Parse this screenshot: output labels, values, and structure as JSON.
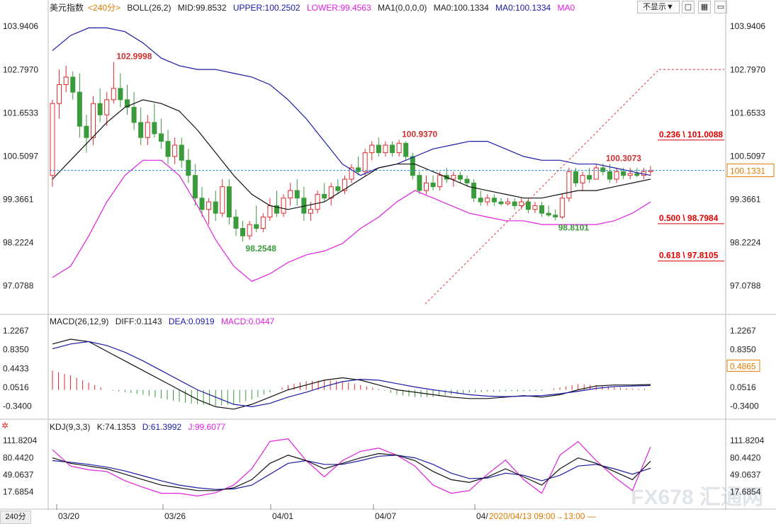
{
  "header": {
    "symbol": "美元指数",
    "period": "<240分>",
    "boll": "BOLL(26,2)",
    "boll_mid": "MID:99.8532",
    "boll_upper": "UPPER:100.2502",
    "boll_lower": "LOWER:99.4563",
    "ma": "MA1(0,0,0,0)",
    "ma0": "MA0:100.1334",
    "ma0b": "MA0:100.1334",
    "ma0c": "MA0",
    "hide_btn": "不显示▼",
    "icons": [
      "box-icon",
      "grid-icon",
      "window-icon"
    ]
  },
  "macd_header": {
    "name": "MACD(26,12,9)",
    "diff": "DIFF:0.1143",
    "dea": "DEA:0.0919",
    "macd": "MACD:0.0447"
  },
  "kdj_header": {
    "name": "KDJ(9,3,3)",
    "k": "K:74.1353",
    "d": "D:61.3992",
    "j": "J:99.6077"
  },
  "footer": {
    "period_label": "240分",
    "time_label": "2020/04/13 09:00→13:00 —"
  },
  "colors": {
    "up": "#e0292b",
    "down": "#3a9b3a",
    "upper_band": "#1a1aa6",
    "lower_band": "#e020e0",
    "mid_band": "#111111",
    "dea_line": "#1a1aa6",
    "fib_text": "#e00000",
    "current_price_line": "#2a8fd0",
    "current_price_box": "#e07a00",
    "macd_value_box": "#e07a00"
  },
  "chart_data": {
    "type": "candlestick",
    "main_yaxis_ticks": [
      "103.9406",
      "102.7970",
      "101.6533",
      "100.5097",
      "99.3661",
      "98.2224",
      "97.0788"
    ],
    "main_ylim": [
      96.4,
      104.3
    ],
    "xaxis_labels": [
      "03/20",
      "03/26",
      "04/01",
      "04/07",
      "04/"
    ],
    "candles": [
      {
        "o": 100.0,
        "h": 102.0,
        "l": 99.7,
        "c": 101.9
      },
      {
        "o": 101.9,
        "h": 102.8,
        "l": 101.5,
        "c": 102.4
      },
      {
        "o": 102.4,
        "h": 102.9,
        "l": 102.2,
        "c": 102.6
      },
      {
        "o": 102.6,
        "h": 102.75,
        "l": 102.0,
        "c": 102.2
      },
      {
        "o": 102.2,
        "h": 102.7,
        "l": 101.0,
        "c": 101.3
      },
      {
        "o": 101.3,
        "h": 101.6,
        "l": 100.6,
        "c": 101.0
      },
      {
        "o": 101.0,
        "h": 102.1,
        "l": 100.8,
        "c": 101.9
      },
      {
        "o": 101.9,
        "h": 102.3,
        "l": 101.4,
        "c": 101.6
      },
      {
        "o": 101.6,
        "h": 102.2,
        "l": 101.3,
        "c": 102.0
      },
      {
        "o": 102.0,
        "h": 103.0,
        "l": 101.9,
        "c": 102.3
      },
      {
        "o": 102.3,
        "h": 102.7,
        "l": 101.8,
        "c": 102.0
      },
      {
        "o": 102.0,
        "h": 102.4,
        "l": 101.6,
        "c": 101.8
      },
      {
        "o": 101.8,
        "h": 102.2,
        "l": 101.2,
        "c": 101.4
      },
      {
        "o": 101.4,
        "h": 101.8,
        "l": 100.8,
        "c": 101.0
      },
      {
        "o": 101.0,
        "h": 101.6,
        "l": 100.8,
        "c": 101.4
      },
      {
        "o": 101.4,
        "h": 101.9,
        "l": 101.0,
        "c": 101.1
      },
      {
        "o": 101.1,
        "h": 101.5,
        "l": 100.7,
        "c": 100.9
      },
      {
        "o": 100.9,
        "h": 101.2,
        "l": 100.3,
        "c": 100.5
      },
      {
        "o": 100.5,
        "h": 101.0,
        "l": 100.3,
        "c": 100.8
      },
      {
        "o": 100.8,
        "h": 101.0,
        "l": 100.2,
        "c": 100.4
      },
      {
        "o": 100.4,
        "h": 100.7,
        "l": 99.8,
        "c": 100.0
      },
      {
        "o": 100.0,
        "h": 100.3,
        "l": 99.2,
        "c": 99.4
      },
      {
        "o": 99.4,
        "h": 99.7,
        "l": 98.9,
        "c": 99.1
      },
      {
        "o": 99.1,
        "h": 99.4,
        "l": 98.7,
        "c": 99.3
      },
      {
        "o": 99.3,
        "h": 99.6,
        "l": 98.8,
        "c": 99.0
      },
      {
        "o": 99.0,
        "h": 99.9,
        "l": 98.9,
        "c": 99.7
      },
      {
        "o": 99.7,
        "h": 99.9,
        "l": 98.7,
        "c": 98.9
      },
      {
        "o": 98.9,
        "h": 99.1,
        "l": 98.4,
        "c": 98.6
      },
      {
        "o": 98.6,
        "h": 98.8,
        "l": 98.25,
        "c": 98.4
      },
      {
        "o": 98.4,
        "h": 98.8,
        "l": 98.3,
        "c": 98.7
      },
      {
        "o": 98.7,
        "h": 99.2,
        "l": 98.5,
        "c": 98.6
      },
      {
        "o": 98.6,
        "h": 99.0,
        "l": 98.5,
        "c": 98.9
      },
      {
        "o": 98.9,
        "h": 99.4,
        "l": 98.8,
        "c": 99.2
      },
      {
        "o": 99.2,
        "h": 99.6,
        "l": 98.9,
        "c": 99.0
      },
      {
        "o": 99.0,
        "h": 99.5,
        "l": 98.9,
        "c": 99.4
      },
      {
        "o": 99.4,
        "h": 99.8,
        "l": 99.2,
        "c": 99.6
      },
      {
        "o": 99.6,
        "h": 99.9,
        "l": 99.2,
        "c": 99.4
      },
      {
        "o": 99.4,
        "h": 99.7,
        "l": 98.8,
        "c": 99.0
      },
      {
        "o": 99.0,
        "h": 99.3,
        "l": 98.8,
        "c": 99.1
      },
      {
        "o": 99.1,
        "h": 99.6,
        "l": 99.0,
        "c": 99.5
      },
      {
        "o": 99.5,
        "h": 99.8,
        "l": 99.3,
        "c": 99.4
      },
      {
        "o": 99.4,
        "h": 99.8,
        "l": 99.2,
        "c": 99.7
      },
      {
        "o": 99.7,
        "h": 99.9,
        "l": 99.5,
        "c": 99.6
      },
      {
        "o": 99.6,
        "h": 100.0,
        "l": 99.5,
        "c": 99.9
      },
      {
        "o": 99.9,
        "h": 100.3,
        "l": 99.8,
        "c": 100.2
      },
      {
        "o": 100.2,
        "h": 100.5,
        "l": 100.0,
        "c": 100.1
      },
      {
        "o": 100.1,
        "h": 100.7,
        "l": 100.0,
        "c": 100.6
      },
      {
        "o": 100.6,
        "h": 100.9,
        "l": 100.4,
        "c": 100.8
      },
      {
        "o": 100.8,
        "h": 101.0,
        "l": 100.5,
        "c": 100.6
      },
      {
        "o": 100.6,
        "h": 100.9,
        "l": 100.5,
        "c": 100.8
      },
      {
        "o": 100.8,
        "h": 100.9,
        "l": 100.5,
        "c": 100.6
      },
      {
        "o": 100.6,
        "h": 100.94,
        "l": 100.5,
        "c": 100.85
      },
      {
        "o": 100.85,
        "h": 100.9,
        "l": 100.4,
        "c": 100.5
      },
      {
        "o": 100.5,
        "h": 100.6,
        "l": 99.9,
        "c": 100.0
      },
      {
        "o": 100.0,
        "h": 100.1,
        "l": 99.5,
        "c": 99.6
      },
      {
        "o": 99.6,
        "h": 100.0,
        "l": 99.5,
        "c": 99.8
      },
      {
        "o": 99.8,
        "h": 100.0,
        "l": 99.6,
        "c": 99.7
      },
      {
        "o": 99.7,
        "h": 100.1,
        "l": 99.6,
        "c": 100.0
      },
      {
        "o": 100.0,
        "h": 100.2,
        "l": 99.8,
        "c": 99.9
      },
      {
        "o": 99.9,
        "h": 100.1,
        "l": 99.7,
        "c": 100.0
      },
      {
        "o": 100.0,
        "h": 100.1,
        "l": 99.8,
        "c": 99.9
      },
      {
        "o": 99.9,
        "h": 100.0,
        "l": 99.7,
        "c": 99.8
      },
      {
        "o": 99.8,
        "h": 99.9,
        "l": 99.3,
        "c": 99.4
      },
      {
        "o": 99.4,
        "h": 99.6,
        "l": 99.2,
        "c": 99.3
      },
      {
        "o": 99.3,
        "h": 99.5,
        "l": 99.2,
        "c": 99.4
      },
      {
        "o": 99.4,
        "h": 99.5,
        "l": 99.2,
        "c": 99.3
      },
      {
        "o": 99.3,
        "h": 99.4,
        "l": 99.2,
        "c": 99.25
      },
      {
        "o": 99.25,
        "h": 99.4,
        "l": 99.2,
        "c": 99.3
      },
      {
        "o": 99.3,
        "h": 99.4,
        "l": 99.1,
        "c": 99.2
      },
      {
        "o": 99.2,
        "h": 99.4,
        "l": 99.1,
        "c": 99.3
      },
      {
        "o": 99.3,
        "h": 99.4,
        "l": 99.0,
        "c": 99.1
      },
      {
        "o": 99.1,
        "h": 99.3,
        "l": 99.0,
        "c": 99.2
      },
      {
        "o": 99.2,
        "h": 99.3,
        "l": 98.9,
        "c": 99.0
      },
      {
        "o": 99.0,
        "h": 99.2,
        "l": 98.9,
        "c": 98.95
      },
      {
        "o": 98.95,
        "h": 99.1,
        "l": 98.81,
        "c": 98.9
      },
      {
        "o": 98.9,
        "h": 99.5,
        "l": 98.85,
        "c": 99.4
      },
      {
        "o": 99.4,
        "h": 100.2,
        "l": 99.3,
        "c": 100.1
      },
      {
        "o": 100.1,
        "h": 100.2,
        "l": 99.7,
        "c": 99.8
      },
      {
        "o": 99.8,
        "h": 100.1,
        "l": 99.6,
        "c": 100.0
      },
      {
        "o": 100.0,
        "h": 100.2,
        "l": 99.8,
        "c": 99.9
      },
      {
        "o": 99.9,
        "h": 100.3,
        "l": 99.9,
        "c": 100.2
      },
      {
        "o": 100.2,
        "h": 100.31,
        "l": 100.0,
        "c": 100.1
      },
      {
        "o": 100.1,
        "h": 100.3,
        "l": 99.8,
        "c": 99.9
      },
      {
        "o": 99.9,
        "h": 100.2,
        "l": 99.8,
        "c": 100.1
      },
      {
        "o": 100.1,
        "h": 100.2,
        "l": 99.9,
        "c": 100.0
      },
      {
        "o": 100.0,
        "h": 100.2,
        "l": 99.9,
        "c": 100.05
      },
      {
        "o": 100.05,
        "h": 100.2,
        "l": 99.95,
        "c": 100.0
      },
      {
        "o": 100.0,
        "h": 100.2,
        "l": 99.9,
        "c": 100.1
      },
      {
        "o": 100.1,
        "h": 100.25,
        "l": 100.0,
        "c": 100.13
      }
    ],
    "boll_upper": [
      103.3,
      103.7,
      103.9,
      103.9,
      103.8,
      103.5,
      103.1,
      102.9,
      102.8,
      102.8,
      102.7,
      102.6,
      102.4,
      102.0,
      101.5,
      100.9,
      100.3,
      100.0,
      100.2,
      100.3,
      100.5,
      100.7,
      100.8,
      100.9,
      100.9,
      100.7,
      100.5,
      100.4,
      100.4,
      100.3,
      100.3,
      100.2,
      100.1,
      100.0
    ],
    "boll_mid": [
      99.9,
      100.4,
      100.9,
      101.4,
      101.8,
      102.0,
      101.9,
      101.7,
      101.2,
      100.6,
      100.0,
      99.5,
      99.2,
      99.1,
      99.2,
      99.3,
      99.6,
      99.9,
      100.2,
      100.3,
      100.3,
      100.1,
      99.9,
      99.7,
      99.6,
      99.5,
      99.4,
      99.4,
      99.5,
      99.6,
      99.6,
      99.7,
      99.8,
      99.9
    ],
    "boll_lower": [
      97.3,
      97.6,
      98.4,
      99.3,
      100.0,
      100.4,
      100.4,
      100.0,
      99.2,
      98.3,
      97.6,
      97.2,
      97.4,
      97.7,
      97.9,
      98.0,
      98.2,
      98.6,
      98.9,
      99.3,
      99.6,
      99.4,
      99.2,
      99.0,
      98.9,
      98.8,
      98.8,
      98.7,
      98.7,
      98.7,
      98.7,
      98.8,
      99.0,
      99.3
    ],
    "fib_levels": [
      {
        "label": "0.236 \\ 101.0088",
        "value": 101.0088
      },
      {
        "label": "0.500 \\ 98.7984",
        "value": 98.7984
      },
      {
        "label": "0.618 \\ 97.8105",
        "value": 97.8105
      }
    ],
    "annotations": [
      {
        "text": "102.9998",
        "value": 102.9998
      },
      {
        "text": "98.2548",
        "value": 98.2548
      },
      {
        "text": "100.9370",
        "value": 100.937
      },
      {
        "text": "98.8101",
        "value": 98.8101
      },
      {
        "text": "100.3073",
        "value": 100.3073
      }
    ],
    "current_price": "100.1331",
    "macd_yaxis_ticks": [
      "1.2267",
      "0.8350",
      "0.4433",
      "0.0516",
      "-0.3400"
    ],
    "macd_ylim": [
      -0.55,
      1.3
    ],
    "macd_value_tag": "0.4865",
    "macd_hist": [
      0.4,
      0.3,
      0.15,
      0.0,
      -0.05,
      -0.1,
      -0.18,
      -0.25,
      -0.3,
      -0.33,
      -0.3,
      -0.2,
      -0.05,
      0.1,
      0.18,
      0.2,
      0.18,
      0.1,
      0.02,
      -0.1,
      -0.15,
      -0.15,
      -0.1,
      -0.06,
      -0.04,
      -0.03,
      -0.03,
      -0.02,
      0.05,
      0.12,
      0.1,
      0.06,
      0.02,
      0.02
    ],
    "macd_diff": [
      0.95,
      1.05,
      1.0,
      0.8,
      0.6,
      0.4,
      0.2,
      0.0,
      -0.2,
      -0.35,
      -0.4,
      -0.3,
      -0.15,
      0.0,
      0.1,
      0.2,
      0.25,
      0.2,
      0.1,
      0.0,
      -0.05,
      -0.1,
      -0.15,
      -0.18,
      -0.18,
      -0.15,
      -0.12,
      -0.15,
      -0.1,
      0.0,
      0.08,
      0.1,
      0.1,
      0.11
    ],
    "macd_dea": [
      0.85,
      0.95,
      1.0,
      0.92,
      0.78,
      0.6,
      0.4,
      0.2,
      0.0,
      -0.15,
      -0.3,
      -0.35,
      -0.28,
      -0.15,
      -0.05,
      0.07,
      0.17,
      0.22,
      0.2,
      0.13,
      0.06,
      0.0,
      -0.05,
      -0.1,
      -0.13,
      -0.14,
      -0.13,
      -0.12,
      -0.08,
      -0.03,
      0.03,
      0.07,
      0.08,
      0.09
    ],
    "kdj_yaxis_ticks": [
      "111.8204",
      "80.4420",
      "49.0637",
      "17.6854"
    ],
    "kdj_ylim": [
      -5,
      125
    ],
    "kdj_k": [
      80,
      70,
      65,
      60,
      50,
      40,
      30,
      25,
      20,
      20,
      25,
      40,
      70,
      85,
      75,
      60,
      70,
      80,
      88,
      85,
      75,
      55,
      40,
      35,
      45,
      60,
      45,
      30,
      60,
      80,
      70,
      55,
      40,
      74
    ],
    "kdj_d": [
      75,
      72,
      68,
      63,
      56,
      47,
      38,
      30,
      25,
      22,
      23,
      30,
      50,
      70,
      75,
      68,
      68,
      75,
      83,
      85,
      80,
      68,
      52,
      42,
      43,
      52,
      48,
      38,
      48,
      65,
      68,
      60,
      50,
      61
    ],
    "kdj_j": [
      95,
      65,
      58,
      55,
      38,
      26,
      15,
      15,
      10,
      16,
      30,
      60,
      110,
      115,
      75,
      45,
      75,
      92,
      98,
      85,
      65,
      30,
      15,
      20,
      50,
      76,
      40,
      15,
      85,
      110,
      75,
      45,
      20,
      100
    ]
  }
}
